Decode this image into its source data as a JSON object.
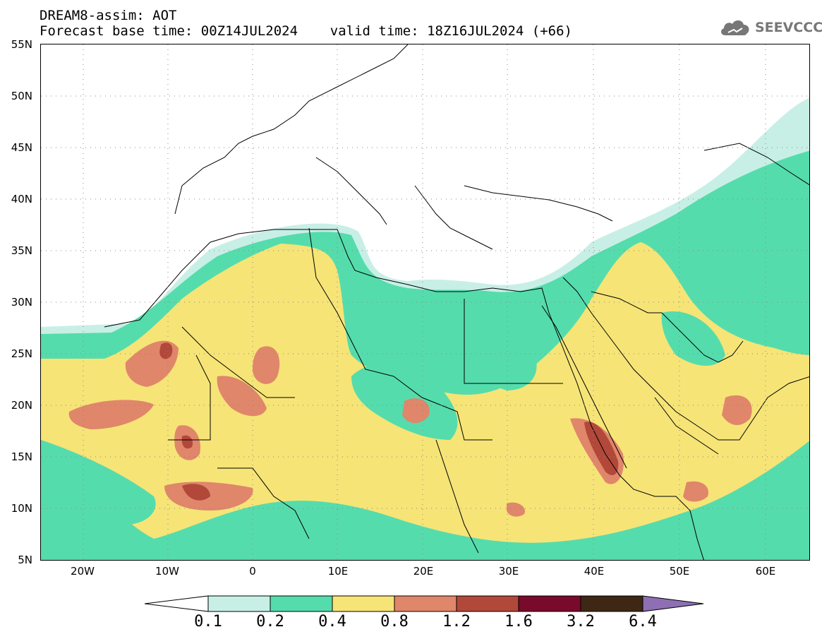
{
  "header": {
    "line1": "DREAM8-assim: AOT",
    "line2": "Forecast base time: 00Z14JUL2024    valid time: 18Z16JUL2024 (+66)"
  },
  "logo": {
    "text": "SEEVCCC",
    "icon": "cloud-logo-icon"
  },
  "map": {
    "lat_labels": [
      "55N",
      "50N",
      "45N",
      "40N",
      "35N",
      "30N",
      "25N",
      "20N",
      "15N",
      "10N",
      "5N"
    ],
    "lon_labels": [
      "20W",
      "10W",
      "0",
      "10E",
      "20E",
      "30E",
      "40E",
      "50E",
      "60E"
    ]
  },
  "colorbar": {
    "levels": [
      "0.1",
      "0.2",
      "0.4",
      "0.8",
      "1.2",
      "1.6",
      "3.2",
      "6.4"
    ],
    "colors": [
      "#c8efe6",
      "#55dcac",
      "#f6e477",
      "#e0866a",
      "#b2483a",
      "#7a0a2c",
      "#3e2714",
      "#8e6fb3"
    ],
    "under_color": "#ffffff",
    "over_color": "#8e6fb3"
  }
}
